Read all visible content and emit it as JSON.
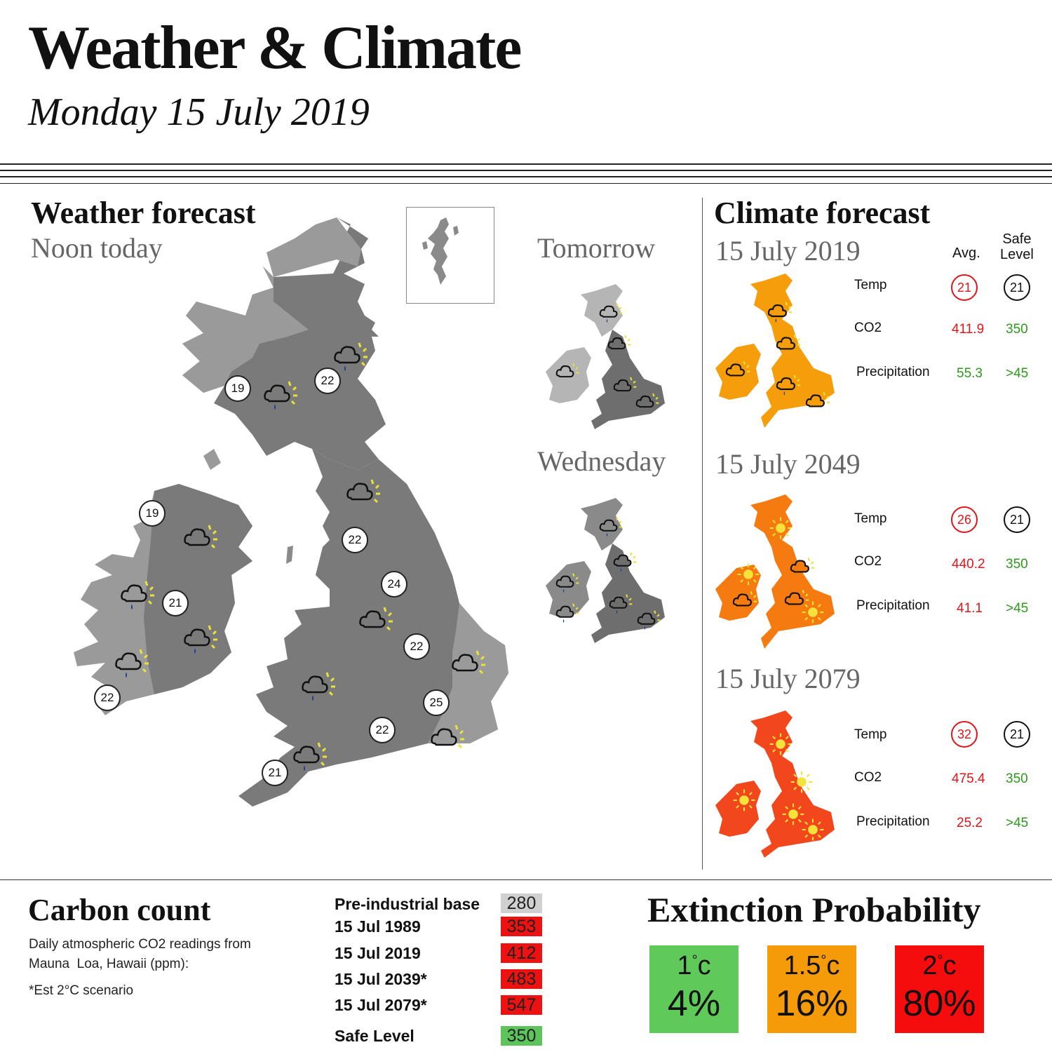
{
  "header": {
    "title": "Weather & Climate",
    "date": "Monday 15 July 2019"
  },
  "weather": {
    "title_a": "Weather",
    "title_b": "forecast",
    "subtitle": "Noon today",
    "temps": [
      "19",
      "22",
      "19",
      "21",
      "22",
      "22",
      "24",
      "22",
      "25",
      "22",
      "21"
    ],
    "map_color": "#7a7a7a"
  },
  "tomorrow": {
    "label": "Tomorrow"
  },
  "wednesday": {
    "label": "Wednesday"
  },
  "climate": {
    "title": "Climate forecast",
    "col_avg": "Avg.",
    "col_safe_1": "Safe",
    "col_safe_2": "Level",
    "rows": {
      "temp": "Temp",
      "co2": "CO2",
      "precip": "Precipitation"
    },
    "scenarios": [
      {
        "date": "15 July 2019",
        "temp_avg": "21",
        "temp_safe": "21",
        "co2_avg": "411.9",
        "co2_safe": "350",
        "precip_avg": "55.3",
        "precip_safe": ">45",
        "map_color": "#f59d0b"
      },
      {
        "date": "15 July 2049",
        "temp_avg": "26",
        "temp_safe": "21",
        "co2_avg": "440.2",
        "co2_safe": "350",
        "precip_avg": "41.1",
        "precip_safe": ">45",
        "map_color": "#f57a10"
      },
      {
        "date": "15 July 2079",
        "temp_avg": "32",
        "temp_safe": "21",
        "co2_avg": "475.4",
        "co2_safe": "350",
        "precip_avg": "25.2",
        "precip_safe": ">45",
        "map_color": "#f2461c"
      }
    ]
  },
  "carbon": {
    "title": "Carbon count",
    "desc_1": "Daily atmospheric CO2 readings from",
    "desc_2": "Mauna  Loa, Hawaii (ppm):",
    "note": "*Est 2°C scenario",
    "rows": [
      {
        "label": "Pre-industrial base",
        "value": "280",
        "color": "#d0d0d0"
      },
      {
        "label": "15 Jul 1989",
        "value": "353",
        "color": "#ee1111"
      },
      {
        "label": "15 Jul 2019",
        "value": "412",
        "color": "#ee1111"
      },
      {
        "label": "15 Jul 2039*",
        "value": "483",
        "color": "#ee1111"
      },
      {
        "label": "15 Jul 2079*",
        "value": "547",
        "color": "#ee1111"
      },
      {
        "label": "Safe Level",
        "value": "350",
        "color": "#5cc45a"
      }
    ]
  },
  "extinction": {
    "title": "Extinction Probability",
    "boxes": [
      {
        "temp": "1",
        "unit": "c",
        "pct": "4%",
        "color": "#5fc95a"
      },
      {
        "temp": "1.5",
        "unit": "c",
        "pct": "16%",
        "color": "#f59a08"
      },
      {
        "temp": "2",
        "unit": "c",
        "pct": "80%",
        "color": "#f50c0c"
      }
    ]
  }
}
